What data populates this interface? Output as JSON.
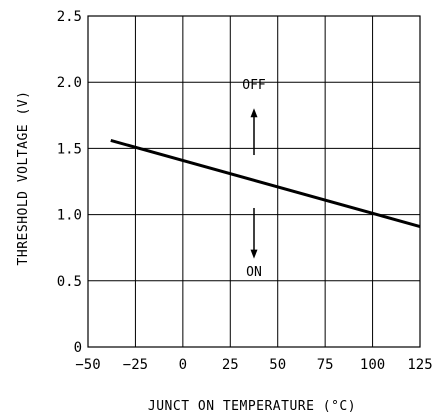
{
  "chart_data": {
    "type": "line",
    "title": "",
    "xlabel": "JUNCT ON TEMPERATURE (°C)",
    "ylabel": "THRESHOLD VOLTAGE (V)",
    "xlim": [
      -50,
      125
    ],
    "ylim": [
      0,
      2.5
    ],
    "x_ticks": [
      "-50",
      "-25",
      "0",
      "25",
      "50",
      "75",
      "100",
      "125"
    ],
    "y_ticks": [
      "0",
      "0.5",
      "1.0",
      "1.5",
      "2.0",
      "2.5"
    ],
    "grid": true,
    "series": [
      {
        "x": [
          -38,
          125
        ],
        "y": [
          1.56,
          0.91
        ]
      }
    ],
    "annotations": [
      {
        "text": "OFF",
        "arrow": "up"
      },
      {
        "text": "ON",
        "arrow": "down"
      }
    ]
  }
}
